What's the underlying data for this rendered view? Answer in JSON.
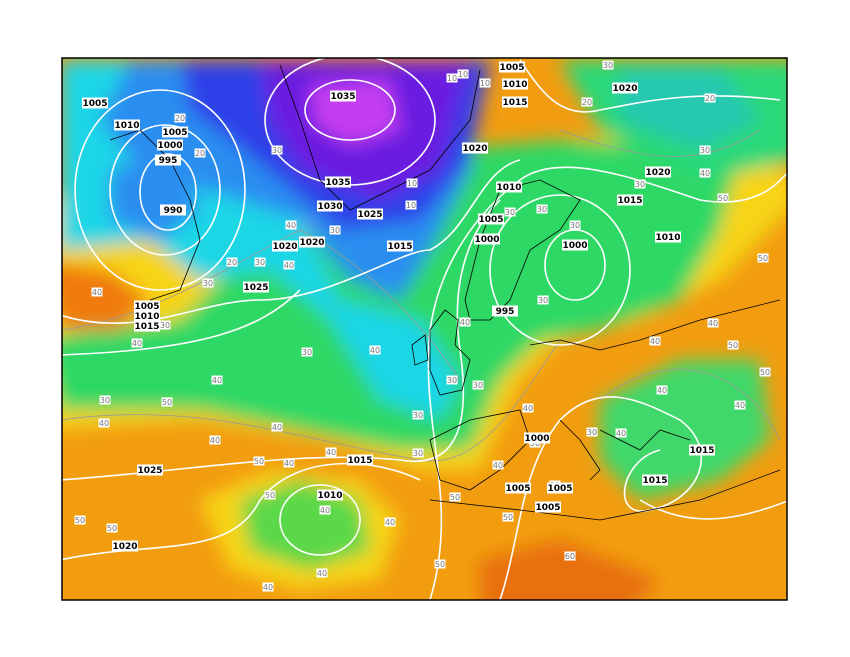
{
  "map": {
    "pressure_labels": [
      "1005",
      "1010",
      "1005",
      "1000",
      "995",
      "990",
      "1035",
      "1035",
      "1030",
      "1025",
      "1020",
      "1020",
      "1015",
      "1025",
      "1005",
      "1010",
      "1015",
      "1005",
      "1010",
      "1015",
      "1020",
      "1020",
      "1010",
      "1005",
      "1000",
      "1000",
      "995",
      "1020",
      "1015",
      "1010",
      "1025",
      "1015",
      "1010",
      "1020",
      "1000",
      "1005",
      "1005",
      "1005",
      "1015",
      "1015"
    ],
    "thickness_labels": [
      "30",
      "20",
      "20",
      "30",
      "30",
      "40",
      "50",
      "50",
      "40",
      "40",
      "50",
      "50",
      "40",
      "40",
      "30",
      "40",
      "40",
      "50",
      "40",
      "50",
      "50",
      "60",
      "40",
      "30",
      "30",
      "30",
      "30",
      "50",
      "50",
      "40",
      "30",
      "40",
      "40",
      "50",
      "30",
      "40",
      "40",
      "50",
      "40",
      "40",
      "50",
      "40",
      "40",
      "40",
      "40",
      "50",
      "50",
      "40",
      "40",
      "30",
      "20",
      "30",
      "30",
      "40",
      "40",
      "30",
      "30",
      "20",
      "20",
      "10",
      "10",
      "10",
      "10",
      "10",
      "30",
      "30",
      "30",
      "30"
    ]
  }
}
